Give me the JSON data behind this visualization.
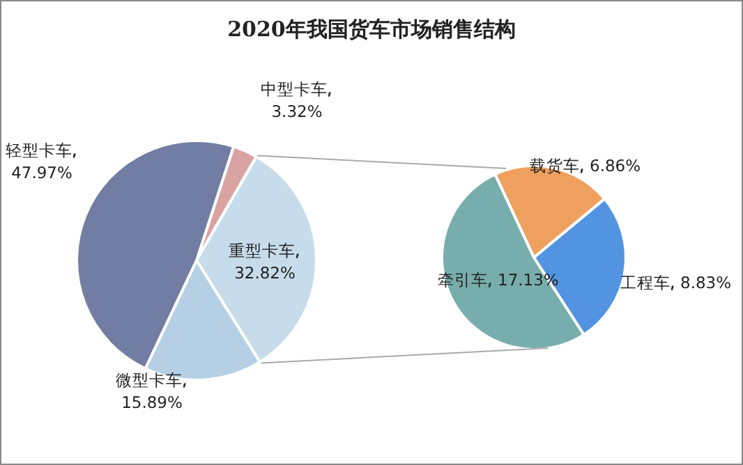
{
  "chart_data": [
    {
      "type": "pie",
      "title": "2020年我国货车市场销售结构",
      "categories": [
        "中型卡车",
        "重型卡车",
        "微型卡车",
        "轻型卡车"
      ],
      "values": [
        3.32,
        32.82,
        15.89,
        47.97
      ],
      "value_labels": [
        "3.32%",
        "32.82%",
        "15.89%",
        "47.97%"
      ],
      "colors": [
        "#d9a3a2",
        "#c6dcea",
        "#b5d0e4",
        "#717da3"
      ]
    },
    {
      "type": "pie",
      "categories": [
        "载货车",
        "工程车",
        "牵引车"
      ],
      "values": [
        6.86,
        8.83,
        17.13
      ],
      "value_labels": [
        "6.86%",
        "8.83%",
        "17.13%"
      ],
      "colors": [
        "#f0a05e",
        "#5294e2",
        "#77adac"
      ]
    }
  ]
}
